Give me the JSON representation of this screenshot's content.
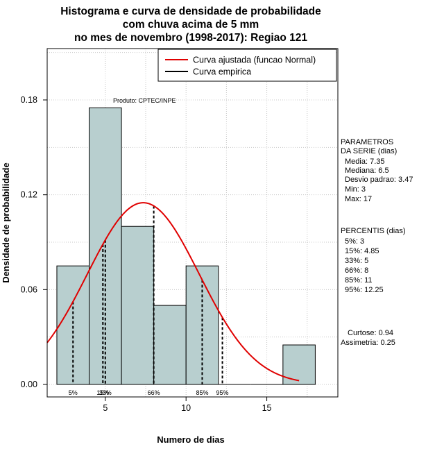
{
  "chart_data": {
    "type": "bar",
    "title_lines": [
      "Histograma e curva de densidade de probabilidade",
      "com chuva acima de 5 mm",
      "no mes de novembro (1998-2017): Regiao 121"
    ],
    "xlabel": "Numero de dias",
    "ylabel": "Densidade de probabilidade",
    "xlim": [
      1.4,
      19.4
    ],
    "ylim": [
      0,
      0.2
    ],
    "x_ticks": [
      5,
      10,
      15
    ],
    "y_ticks": [
      0.0,
      0.06,
      0.12,
      0.18
    ],
    "x_tick_labels": [
      "5",
      "10",
      "15"
    ],
    "y_tick_labels": [
      "0.00",
      "0.06",
      "0.12",
      "0.18"
    ],
    "grid": true,
    "credit": "Produto: CPTEC/INPE",
    "histogram": {
      "bin_edges": [
        2,
        4,
        6,
        8,
        10,
        12,
        14,
        16,
        18
      ],
      "densities": [
        0.075,
        0.175,
        0.1,
        0.05,
        0.075,
        0,
        0,
        0.025
      ],
      "fill": "#b8cfcf"
    },
    "curve": {
      "name": "Curva ajustada (funcao Normal)",
      "distribution": "normal",
      "mean": 7.35,
      "sd": 3.47,
      "x_from": 1.4,
      "x_to": 17,
      "color": "#e00000"
    },
    "empirical": {
      "name": "Curva empirica",
      "color": "#000000"
    },
    "legend": {
      "placement": "top-right",
      "items": [
        {
          "label": "Curva ajustada (funcao Normal)",
          "color": "#e00000"
        },
        {
          "label": "Curva empirica",
          "color": "#000000"
        }
      ]
    },
    "percentile_lines": [
      {
        "label": "5%",
        "x": 3
      },
      {
        "label": "15%",
        "x": 4.85
      },
      {
        "label": "33%",
        "x": 5
      },
      {
        "label": "66%",
        "x": 8
      },
      {
        "label": "85%",
        "x": 11
      },
      {
        "label": "95%",
        "x": 12.25
      }
    ]
  },
  "parametros": {
    "heading1": "PARAMETROS",
    "heading2": "DA SERIE (dias)",
    "lines": [
      "Media: 7.35",
      "Mediana: 6.5",
      "Desvio padrao: 3.47",
      "Min: 3",
      "Max: 17"
    ]
  },
  "percentis": {
    "heading": "PERCENTIS (dias)",
    "lines": [
      "5%: 3",
      "15%: 4.85",
      "33%: 5",
      "66%: 8",
      "85%: 11",
      "95%: 12.25"
    ]
  },
  "shape": {
    "curtose": "Curtose: 0.94",
    "assimetria": "Assimetria: 0.25"
  }
}
